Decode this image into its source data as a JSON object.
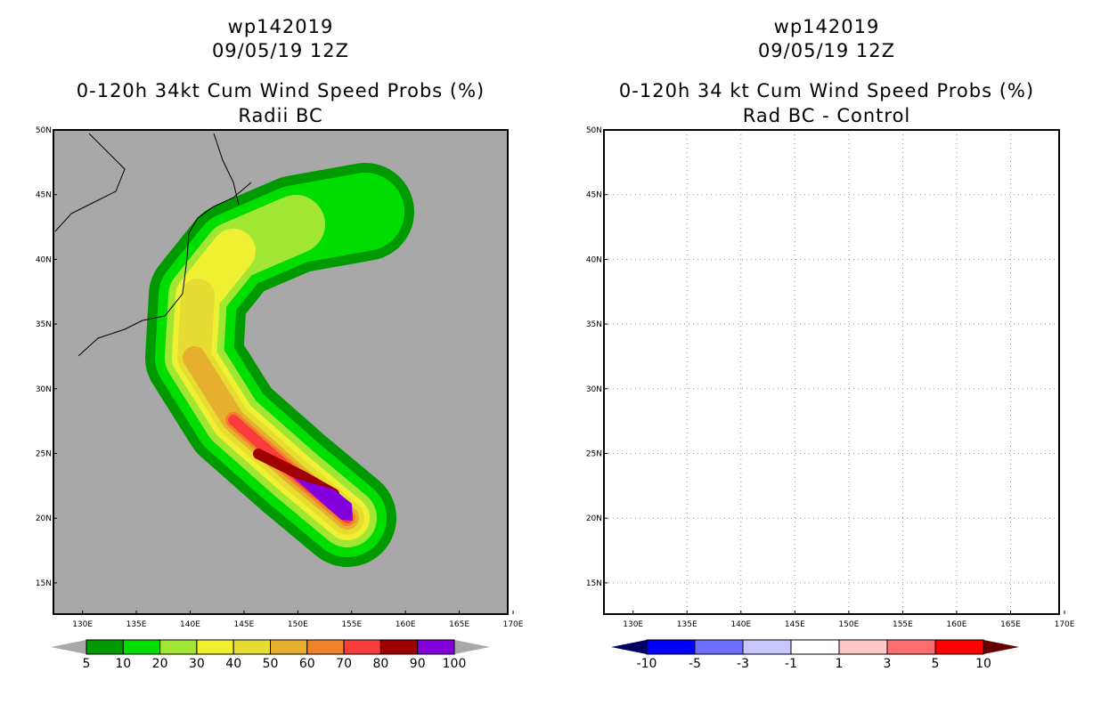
{
  "panels": [
    {
      "storm": "wp142019",
      "date": "09/05/19 12Z",
      "title": "0-120h 34kt Cum Wind Speed Probs (%)",
      "subtitle": "Radii BC",
      "background": "#a8a8a8",
      "grid": false,
      "colorbar": {
        "labels": [
          "5",
          "10",
          "20",
          "30",
          "40",
          "50",
          "60",
          "70",
          "80",
          "90",
          "100"
        ],
        "colors": [
          "#009900",
          "#00dd00",
          "#a0e632",
          "#f0f032",
          "#e6dc32",
          "#e6af2d",
          "#f08228",
          "#fa3c3c",
          "#a00000",
          "#8200dc"
        ],
        "extend_color": "#a8a8a8"
      }
    },
    {
      "storm": "wp142019",
      "date": "09/05/19 12Z",
      "title": "0-120h 34 kt Cum Wind Speed Probs (%)",
      "subtitle": "Rad BC - Control",
      "background": "#ffffff",
      "grid": true,
      "colorbar": {
        "labels": [
          "-10",
          "-5",
          "-3",
          "-1",
          "1",
          "3",
          "5",
          "10"
        ],
        "colors": [
          "#0000ff",
          "#6e6eff",
          "#c8c8ff",
          "#ffffff",
          "#ffc8c8",
          "#ff6e6e",
          "#ff0000"
        ],
        "low_color": "#000064",
        "high_color": "#640000"
      }
    }
  ],
  "axes": {
    "lon_labels": [
      "130E",
      "135E",
      "140E",
      "145E",
      "150E",
      "155E",
      "160E",
      "165E",
      "170E"
    ],
    "lat_labels": [
      "15N",
      "20N",
      "25N",
      "30N",
      "35N",
      "40N",
      "45N",
      "50N"
    ]
  }
}
